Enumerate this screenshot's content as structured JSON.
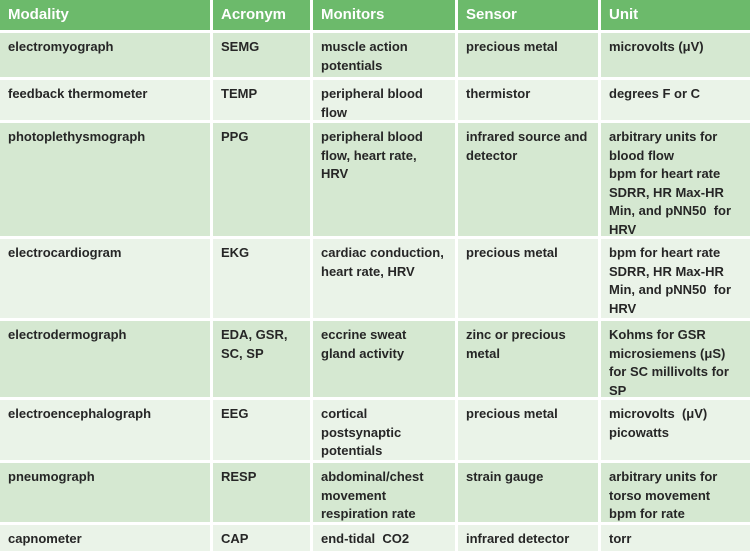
{
  "colors": {
    "header_bg": "#6cba6b",
    "header_text": "#ffffff",
    "row_dark_bg": "#d5e8d1",
    "row_light_bg": "#eaf3e8",
    "body_text": "#262626",
    "grid_gap": "#ffffff"
  },
  "table": {
    "columns": [
      "Modality",
      "Acronym",
      "Monitors",
      "Sensor",
      "Unit"
    ],
    "rows": [
      {
        "modality": "electromyograph",
        "acronym": "SEMG",
        "monitors": "muscle action\npotentials",
        "sensor": "precious metal",
        "unit": "microvolts (μV)"
      },
      {
        "modality": "feedback thermometer",
        "acronym": "TEMP",
        "monitors": "peripheral blood\nflow",
        "sensor": "thermistor",
        "unit": "degrees F or C"
      },
      {
        "modality": "photoplethysmograph",
        "acronym": "PPG",
        "monitors": "peripheral blood\nflow, heart rate,\nHRV",
        "sensor": "infrared source and\ndetector",
        "unit": "arbitrary units for\nblood flow\nbpm for heart rate\nSDRR, HR Max-HR\nMin, and pNN50  for\nHRV"
      },
      {
        "modality": "electrocardiogram",
        "acronym": "EKG",
        "monitors": "cardiac conduction,\nheart rate, HRV",
        "sensor": "precious metal",
        "unit": "bpm for heart rate\nSDRR, HR Max-HR\nMin, and pNN50  for\nHRV"
      },
      {
        "modality": "electrodermograph",
        "acronym": "EDA, GSR,\nSC, SP",
        "monitors": "eccrine sweat\ngland activity",
        "sensor": "zinc or precious\nmetal",
        "unit": "Kohms for GSR\nmicrosiemens (μS)\nfor SC millivolts for\nSP"
      },
      {
        "modality": "electroencephalograph",
        "acronym": "EEG",
        "monitors": "cortical\npostsynaptic\npotentials",
        "sensor": "precious metal",
        "unit": "microvolts  (μV)\npicowatts"
      },
      {
        "modality": "pneumograph",
        "acronym": "RESP",
        "monitors": "abdominal/chest\nmovement\nrespiration rate",
        "sensor": "strain gauge",
        "unit": "arbitrary units for\ntorso movement\nbpm for rate"
      },
      {
        "modality": "capnometer",
        "acronym": "CAP",
        "monitors": "end-tidal  CO2",
        "sensor": "infrared detector",
        "unit": "torr"
      }
    ]
  }
}
